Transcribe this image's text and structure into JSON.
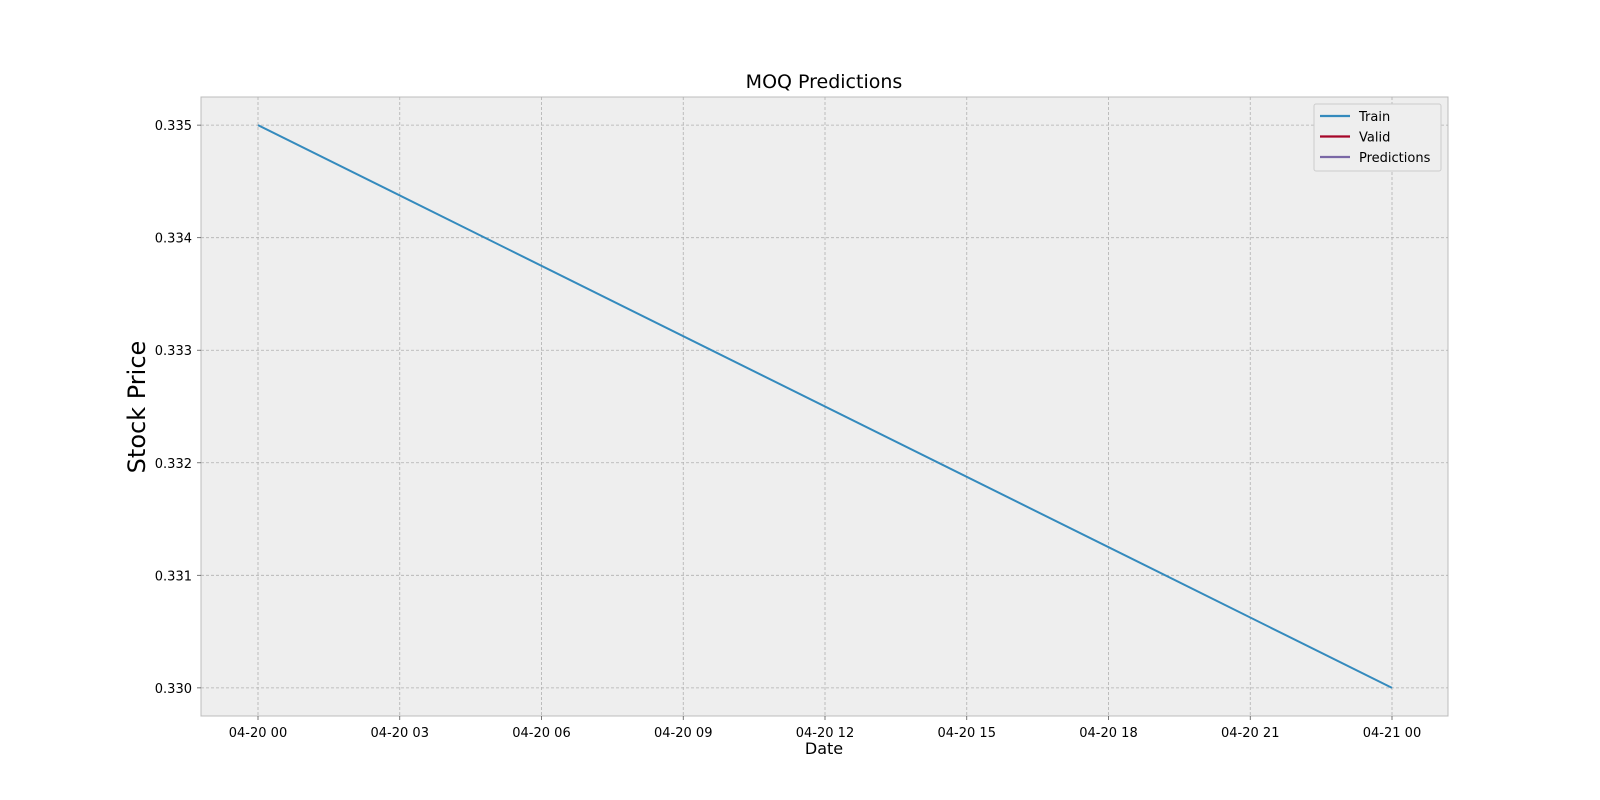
{
  "chart_data": {
    "type": "line",
    "title": "MOQ Predictions",
    "xlabel": "Date",
    "ylabel": "Stock Price",
    "x_ticks": [
      "04-20 00",
      "04-20 03",
      "04-20 06",
      "04-20 09",
      "04-20 12",
      "04-20 15",
      "04-20 18",
      "04-20 21",
      "04-21 00"
    ],
    "y_ticks": [
      "0.330",
      "0.331",
      "0.332",
      "0.333",
      "0.334",
      "0.335"
    ],
    "ylim": [
      0.32975,
      0.33525
    ],
    "grid": true,
    "legend_position": "top-right",
    "series": [
      {
        "name": "Train",
        "color": "#348ABD",
        "x": [
          "04-20 00",
          "04-21 00"
        ],
        "y": [
          0.335,
          0.33
        ]
      },
      {
        "name": "Valid",
        "color": "#A60628",
        "x": [],
        "y": []
      },
      {
        "name": "Predictions",
        "color": "#7A68A6",
        "x": [],
        "y": []
      }
    ]
  }
}
